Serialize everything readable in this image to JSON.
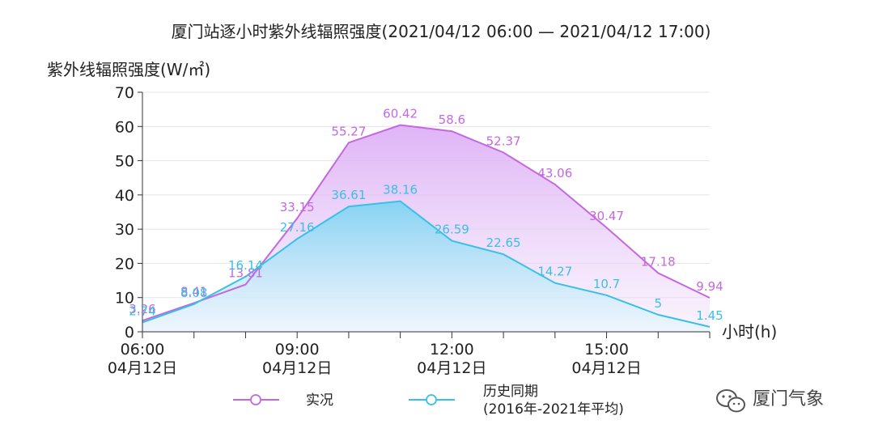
{
  "chart_data": {
    "type": "area",
    "title": "厦门站逐小时紫外线辐照强度(2021/04/12 06:00 — 2021/04/12 17:00)",
    "ylabel": "紫外线辐照强度(W/㎡)",
    "xlabel": "小时(h)",
    "ylim": [
      0,
      70
    ],
    "yticks": [
      0,
      10,
      20,
      30,
      40,
      50,
      60,
      70
    ],
    "xticks": [
      {
        "hour": 6,
        "line1": "06:00",
        "line2": "04月12日"
      },
      {
        "hour": 9,
        "line1": "09:00",
        "line2": "04月12日"
      },
      {
        "hour": 12,
        "line1": "12:00",
        "line2": "04月12日"
      },
      {
        "hour": 15,
        "line1": "15:00",
        "line2": "04月12日"
      }
    ],
    "xlim": [
      6,
      17
    ],
    "grid": true,
    "legend_placement": "bottom",
    "series": [
      {
        "name": "实况",
        "color": "#c468e0",
        "x": [
          6,
          7,
          8,
          9,
          10,
          11,
          12,
          13,
          14,
          15,
          16,
          17
        ],
        "values": [
          3.26,
          8.41,
          13.81,
          33.15,
          55.27,
          60.42,
          58.6,
          52.37,
          43.06,
          30.47,
          17.18,
          9.94
        ]
      },
      {
        "name": "历史同期",
        "name_line2": "(2016年-2021年平均)",
        "color": "#39c0e6",
        "x": [
          6,
          7,
          8,
          9,
          10,
          11,
          12,
          13,
          14,
          15,
          16,
          17
        ],
        "values": [
          2.74,
          8.08,
          16.14,
          27.16,
          36.61,
          38.16,
          26.59,
          22.65,
          14.27,
          10.7,
          5,
          1.45
        ]
      }
    ]
  },
  "watermark": {
    "icon": "wechat-icon",
    "text": "厦门气象"
  }
}
